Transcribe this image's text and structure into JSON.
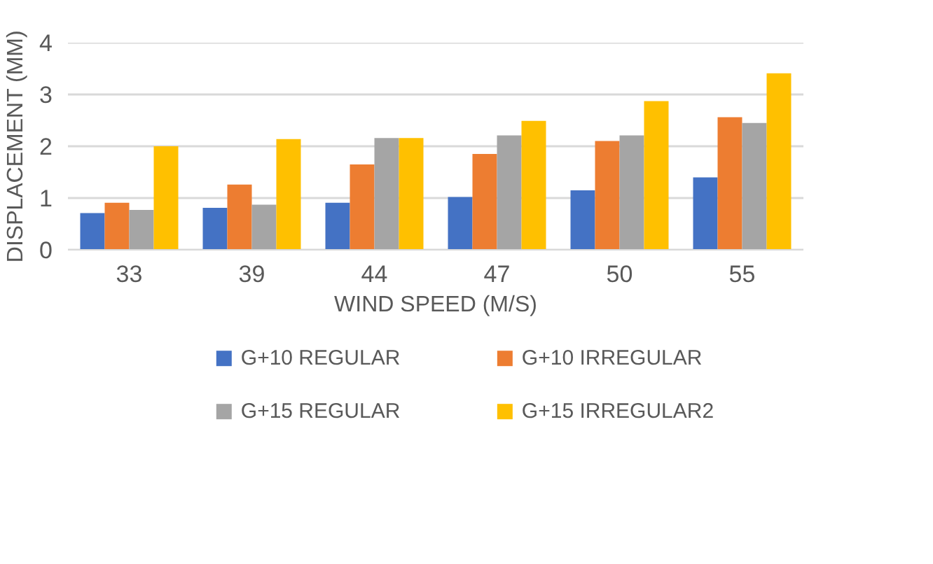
{
  "chart_data": {
    "type": "bar",
    "xlabel": "WIND SPEED (M/S)",
    "ylabel": "DISPLACEMENT (MM)",
    "categories": [
      "33",
      "39",
      "44",
      "47",
      "50",
      "55"
    ],
    "series": [
      {
        "name": "G+10 REGULAR",
        "color": "#4472c4",
        "values": [
          0.71,
          0.81,
          0.91,
          1.02,
          1.15,
          1.4
        ]
      },
      {
        "name": "G+10 IRREGULAR",
        "color": "#ed7d31",
        "values": [
          0.91,
          1.26,
          1.65,
          1.85,
          2.1,
          2.56
        ]
      },
      {
        "name": "G+15 REGULAR",
        "color": "#a5a5a5",
        "values": [
          0.77,
          0.87,
          2.16,
          2.21,
          2.21,
          2.45
        ]
      },
      {
        "name": "G+15 IRREGULAR2",
        "color": "#ffc000",
        "values": [
          2.0,
          2.14,
          2.16,
          2.49,
          2.87,
          3.41
        ]
      }
    ],
    "ylim": [
      0,
      4
    ],
    "yticks": [
      0,
      1,
      2,
      3,
      4
    ],
    "grid": "y",
    "legend": "bottom"
  }
}
